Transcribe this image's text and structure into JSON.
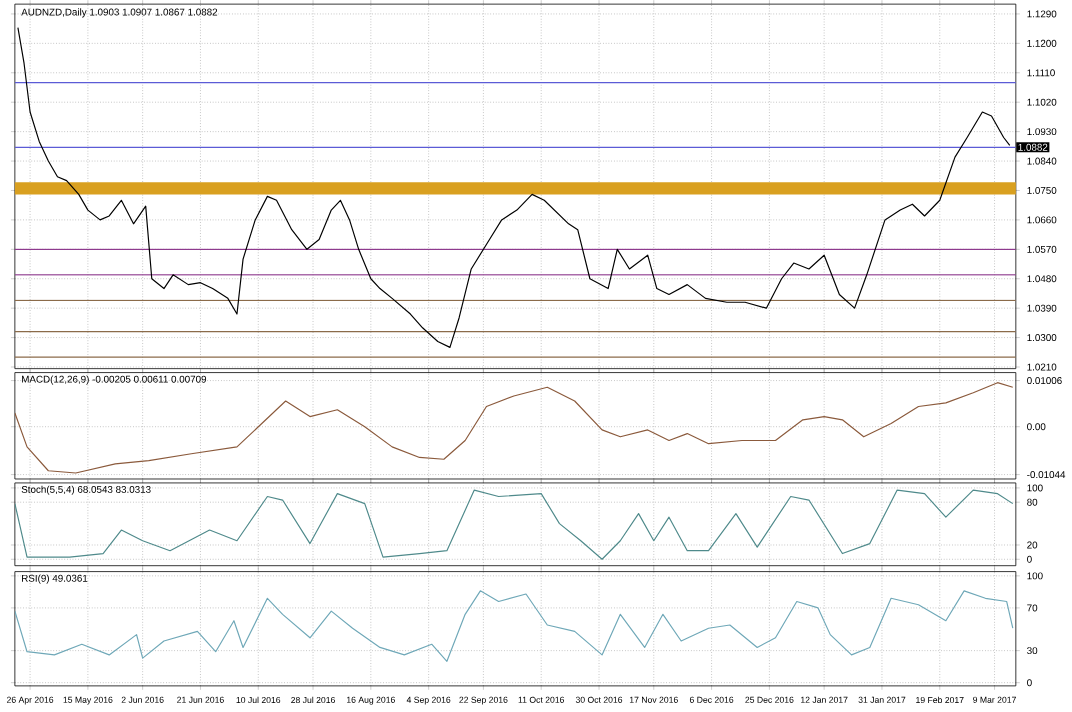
{
  "chart_data": [
    {
      "type": "line",
      "title": "AUDNZD,Daily 1.0903 1.0907 1.0867 1.0882",
      "xlim": [
        "2016-04-21",
        "2017-03-16"
      ],
      "xticks": [
        {
          "value": "2016-04-26",
          "label": null
        },
        {
          "value": "2016-05-15",
          "label": null
        },
        {
          "value": "2016-06-02",
          "label": null
        },
        {
          "value": "2016-06-21",
          "label": null
        },
        {
          "value": "2016-07-10",
          "label": null
        },
        {
          "value": "2016-07-28",
          "label": null
        },
        {
          "value": "2016-08-16",
          "label": null
        },
        {
          "value": "2016-09-04",
          "label": null
        },
        {
          "value": "2016-09-22",
          "label": null
        },
        {
          "value": "2016-10-11",
          "label": null
        },
        {
          "value": "2016-10-30",
          "label": null
        },
        {
          "value": "2016-11-17",
          "label": null
        },
        {
          "value": "2016-12-06",
          "label": null
        },
        {
          "value": "2016-12-25",
          "label": null
        },
        {
          "value": "2017-01-12",
          "label": null
        },
        {
          "value": "2017-01-31",
          "label": null
        },
        {
          "value": "2017-02-19",
          "label": null
        },
        {
          "value": "2017-03-09",
          "label": null
        }
      ],
      "ylim": [
        1.0205,
        1.132
      ],
      "yticks": [
        {
          "value": 1.129,
          "label": "1.1290"
        },
        {
          "value": 1.12,
          "label": "1.1200"
        },
        {
          "value": 1.111,
          "label": "1.1110"
        },
        {
          "value": 1.102,
          "label": "1.1020"
        },
        {
          "value": 1.093,
          "label": "1.0930"
        },
        {
          "value": 1.084,
          "label": "1.0840"
        },
        {
          "value": 1.075,
          "label": "1.0750"
        },
        {
          "value": 1.066,
          "label": "1.0660"
        },
        {
          "value": 1.057,
          "label": "1.0570"
        },
        {
          "value": 1.048,
          "label": "1.0480"
        },
        {
          "value": 1.039,
          "label": "1.0390"
        },
        {
          "value": 1.03,
          "label": "1.0300"
        },
        {
          "value": 1.021,
          "label": "1.0210"
        }
      ],
      "grid": true,
      "tick_labels": "y",
      "marker": "none",
      "line_style": "solid",
      "bands": [
        {
          "axis": "y",
          "from": 1.0738,
          "to": 1.0775,
          "color": "#d9a020"
        }
      ],
      "ref_lines": [
        {
          "axis": "y",
          "value": 1.108,
          "color": "#5b5bd6"
        },
        {
          "axis": "y",
          "value": 1.0882,
          "label": "1.0882",
          "color": "#5b5bd6"
        },
        {
          "axis": "y",
          "value": 1.057,
          "color": "#8e3a8e"
        },
        {
          "axis": "y",
          "value": 1.0492,
          "color": "#8e3a8e"
        },
        {
          "axis": "y",
          "value": 1.0414,
          "color": "#8b6b4a"
        },
        {
          "axis": "y",
          "value": 1.0318,
          "color": "#8b6b4a"
        },
        {
          "axis": "y",
          "value": 1.024,
          "color": "#8b6b4a"
        }
      ],
      "series": [
        {
          "color": "#000000",
          "x": [
            "2016-04-22",
            "2016-04-24",
            "2016-04-26",
            "2016-04-29",
            "2016-05-02",
            "2016-05-05",
            "2016-05-08",
            "2016-05-12",
            "2016-05-15",
            "2016-05-19",
            "2016-05-22",
            "2016-05-26",
            "2016-05-30",
            "2016-06-03",
            "2016-06-05",
            "2016-06-09",
            "2016-06-12",
            "2016-06-17",
            "2016-06-21",
            "2016-06-25",
            "2016-06-30",
            "2016-07-03",
            "2016-07-05",
            "2016-07-09",
            "2016-07-13",
            "2016-07-16",
            "2016-07-21",
            "2016-07-26",
            "2016-07-30",
            "2016-08-03",
            "2016-08-06",
            "2016-08-09",
            "2016-08-12",
            "2016-08-16",
            "2016-08-19",
            "2016-08-23",
            "2016-08-29",
            "2016-09-02",
            "2016-09-07",
            "2016-09-11",
            "2016-09-14",
            "2016-09-18",
            "2016-09-24",
            "2016-09-28",
            "2016-10-03",
            "2016-10-08",
            "2016-10-12",
            "2016-10-20",
            "2016-10-23",
            "2016-10-27",
            "2016-11-02",
            "2016-11-05",
            "2016-11-09",
            "2016-11-15",
            "2016-11-18",
            "2016-11-22",
            "2016-11-28",
            "2016-12-04",
            "2016-12-11",
            "2016-12-17",
            "2016-12-24",
            "2016-12-29",
            "2017-01-02",
            "2017-01-07",
            "2017-01-12",
            "2017-01-17",
            "2017-01-22",
            "2017-01-26",
            "2017-02-01",
            "2017-02-06",
            "2017-02-10",
            "2017-02-14",
            "2017-02-19",
            "2017-02-24",
            "2017-02-28",
            "2017-03-05",
            "2017-03-08",
            "2017-03-12",
            "2017-03-14"
          ],
          "values": [
            1.1248,
            1.114,
            1.099,
            1.09,
            1.084,
            1.0792,
            1.078,
            1.0738,
            1.069,
            1.066,
            1.0672,
            1.072,
            1.0648,
            1.0702,
            1.048,
            1.045,
            1.0492,
            1.0462,
            1.0468,
            1.045,
            1.042,
            1.0372,
            1.054,
            1.066,
            1.0732,
            1.072,
            1.063,
            1.057,
            1.06,
            1.069,
            1.072,
            1.066,
            1.057,
            1.048,
            1.045,
            1.042,
            1.0372,
            1.033,
            1.0288,
            1.027,
            1.036,
            1.051,
            1.06,
            1.066,
            1.069,
            1.0738,
            1.072,
            1.0648,
            1.063,
            1.048,
            1.045,
            1.057,
            1.051,
            1.0552,
            1.045,
            1.0432,
            1.0462,
            1.042,
            1.0408,
            1.0408,
            1.039,
            1.048,
            1.0528,
            1.051,
            1.0552,
            1.0432,
            1.039,
            1.0492,
            1.066,
            1.069,
            1.0708,
            1.0672,
            1.072,
            1.0852,
            1.0912,
            1.099,
            1.0978,
            1.0912,
            1.0888
          ]
        }
      ]
    },
    {
      "type": "line",
      "title": "MACD(12,26,9) -0.00205 0.00611 0.00709",
      "xlim": [
        "2016-04-21",
        "2017-03-16"
      ],
      "xticks": [
        {
          "value": "2016-04-26",
          "label": null
        },
        {
          "value": "2016-05-15",
          "label": null
        },
        {
          "value": "2016-06-02",
          "label": null
        },
        {
          "value": "2016-06-21",
          "label": null
        },
        {
          "value": "2016-07-10",
          "label": null
        },
        {
          "value": "2016-07-28",
          "label": null
        },
        {
          "value": "2016-08-16",
          "label": null
        },
        {
          "value": "2016-09-04",
          "label": null
        },
        {
          "value": "2016-09-22",
          "label": null
        },
        {
          "value": "2016-10-11",
          "label": null
        },
        {
          "value": "2016-10-30",
          "label": null
        },
        {
          "value": "2016-11-17",
          "label": null
        },
        {
          "value": "2016-12-06",
          "label": null
        },
        {
          "value": "2016-12-25",
          "label": null
        },
        {
          "value": "2017-01-12",
          "label": null
        },
        {
          "value": "2017-01-31",
          "label": null
        },
        {
          "value": "2017-02-19",
          "label": null
        },
        {
          "value": "2017-03-09",
          "label": null
        }
      ],
      "ylim": [
        -0.0114,
        0.0118
      ],
      "yticks": [
        0.01006,
        {
          "value": 0,
          "label": "0.00"
        },
        -0.01044
      ],
      "grid": true,
      "tick_labels": "y",
      "marker": "none",
      "line_style": "solid",
      "series": [
        {
          "color": "#8b5a3c",
          "x": [
            "2016-04-21",
            "2016-04-25",
            "2016-05-02",
            "2016-05-11",
            "2016-05-24",
            "2016-06-04",
            "2016-06-18",
            "2016-07-03",
            "2016-07-19",
            "2016-07-27",
            "2016-08-05",
            "2016-08-14",
            "2016-08-23",
            "2016-09-01",
            "2016-09-09",
            "2016-09-16",
            "2016-09-23",
            "2016-10-02",
            "2016-10-13",
            "2016-10-22",
            "2016-10-31",
            "2016-11-06",
            "2016-11-15",
            "2016-11-22",
            "2016-11-28",
            "2016-12-05",
            "2016-12-16",
            "2016-12-27",
            "2017-01-05",
            "2017-01-12",
            "2017-01-18",
            "2017-01-25",
            "2017-02-03",
            "2017-02-12",
            "2017-02-21",
            "2017-03-02",
            "2017-03-10",
            "2017-03-15"
          ],
          "values": [
            0.003,
            -0.0044,
            -0.0096,
            -0.0101,
            -0.0081,
            -0.0074,
            -0.0059,
            -0.0044,
            0.0056,
            0.0022,
            0.0037,
            0,
            -0.0044,
            -0.0067,
            -0.0071,
            -0.003,
            0.0044,
            0.0067,
            0.0086,
            0.0056,
            -0.0007,
            -0.0022,
            -0.0007,
            -0.003,
            -0.0015,
            -0.0037,
            -0.003,
            -0.003,
            0.0015,
            0.0022,
            0.0015,
            -0.0022,
            0.0007,
            0.0044,
            0.0052,
            0.0074,
            0.0096,
            0.0086
          ]
        }
      ]
    },
    {
      "type": "line",
      "title": "Stoch(5,5,4) 68.0543 83.0313",
      "xlim": [
        "2016-04-21",
        "2017-03-16"
      ],
      "xticks": [
        {
          "value": "2016-04-26",
          "label": null
        },
        {
          "value": "2016-05-15",
          "label": null
        },
        {
          "value": "2016-06-02",
          "label": null
        },
        {
          "value": "2016-06-21",
          "label": null
        },
        {
          "value": "2016-07-10",
          "label": null
        },
        {
          "value": "2016-07-28",
          "label": null
        },
        {
          "value": "2016-08-16",
          "label": null
        },
        {
          "value": "2016-09-04",
          "label": null
        },
        {
          "value": "2016-09-22",
          "label": null
        },
        {
          "value": "2016-10-11",
          "label": null
        },
        {
          "value": "2016-10-30",
          "label": null
        },
        {
          "value": "2016-11-17",
          "label": null
        },
        {
          "value": "2016-12-06",
          "label": null
        },
        {
          "value": "2016-12-25",
          "label": null
        },
        {
          "value": "2017-01-12",
          "label": null
        },
        {
          "value": "2017-01-31",
          "label": null
        },
        {
          "value": "2017-02-19",
          "label": null
        },
        {
          "value": "2017-03-09",
          "label": null
        }
      ],
      "ylim": [
        -9,
        107
      ],
      "yticks": [
        100,
        80,
        20,
        0
      ],
      "grid": true,
      "tick_labels": "y",
      "marker": "none",
      "line_style": "solid",
      "series": [
        {
          "color": "#4f8a8b",
          "x": [
            "2016-04-21",
            "2016-04-25",
            "2016-05-09",
            "2016-05-20",
            "2016-05-26",
            "2016-06-02",
            "2016-06-11",
            "2016-06-24",
            "2016-07-03",
            "2016-07-13",
            "2016-07-18",
            "2016-07-27",
            "2016-08-05",
            "2016-08-14",
            "2016-08-20",
            "2016-09-01",
            "2016-09-10",
            "2016-09-19",
            "2016-09-27",
            "2016-10-11",
            "2016-10-17",
            "2016-10-24",
            "2016-10-31",
            "2016-11-06",
            "2016-11-12",
            "2016-11-17",
            "2016-11-22",
            "2016-11-28",
            "2016-12-05",
            "2016-12-14",
            "2016-12-21",
            "2017-01-01",
            "2017-01-07",
            "2017-01-18",
            "2017-01-27",
            "2017-02-05",
            "2017-02-14",
            "2017-02-21",
            "2017-03-02",
            "2017-03-10",
            "2017-03-15"
          ],
          "values": [
            78,
            3,
            3,
            8,
            41,
            26,
            12,
            41,
            26,
            88,
            83,
            22,
            92,
            78,
            3,
            8,
            12,
            97,
            88,
            92,
            50,
            26,
            0,
            26,
            64,
            26,
            59,
            12,
            12,
            64,
            17,
            88,
            83,
            8,
            22,
            97,
            92,
            59,
            97,
            92,
            78
          ]
        }
      ]
    },
    {
      "type": "line",
      "title": "RSI(9) 49.0361",
      "xlim": [
        "2016-04-21",
        "2017-03-16"
      ],
      "xticks": [
        {
          "value": "2016-04-26",
          "label": "26 Apr 2016"
        },
        {
          "value": "2016-05-15",
          "label": "15 May 2016"
        },
        {
          "value": "2016-06-02",
          "label": "2 Jun 2016"
        },
        {
          "value": "2016-06-21",
          "label": "21 Jun 2016"
        },
        {
          "value": "2016-07-10",
          "label": "10 Jul 2016"
        },
        {
          "value": "2016-07-28",
          "label": "28 Jul 2016"
        },
        {
          "value": "2016-08-16",
          "label": "16 Aug 2016"
        },
        {
          "value": "2016-09-04",
          "label": "4 Sep 2016"
        },
        {
          "value": "2016-09-22",
          "label": "22 Sep 2016"
        },
        {
          "value": "2016-10-11",
          "label": "11 Oct 2016"
        },
        {
          "value": "2016-10-30",
          "label": "30 Oct 2016"
        },
        {
          "value": "2016-11-17",
          "label": "17 Nov 2016"
        },
        {
          "value": "2016-12-06",
          "label": "6 Dec 2016"
        },
        {
          "value": "2016-12-25",
          "label": "25 Dec 2016"
        },
        {
          "value": "2017-01-12",
          "label": "12 Jan 2017"
        },
        {
          "value": "2017-01-31",
          "label": "31 Jan 2017"
        },
        {
          "value": "2017-02-19",
          "label": "19 Feb 2017"
        },
        {
          "value": "2017-03-09",
          "label": "9 Mar 2017"
        }
      ],
      "ylim": [
        -3,
        104
      ],
      "yticks": [
        100,
        70,
        30,
        0
      ],
      "grid": true,
      "marker": "none",
      "line_style": "solid",
      "series": [
        {
          "color": "#6fa8b8",
          "x": [
            "2016-04-21",
            "2016-04-25",
            "2016-05-04",
            "2016-05-13",
            "2016-05-22",
            "2016-05-31",
            "2016-06-02",
            "2016-06-09",
            "2016-06-20",
            "2016-06-26",
            "2016-07-02",
            "2016-07-05",
            "2016-07-13",
            "2016-07-18",
            "2016-07-27",
            "2016-08-03",
            "2016-08-10",
            "2016-08-19",
            "2016-08-27",
            "2016-09-05",
            "2016-09-10",
            "2016-09-16",
            "2016-09-21",
            "2016-09-27",
            "2016-10-06",
            "2016-10-13",
            "2016-10-22",
            "2016-10-31",
            "2016-11-06",
            "2016-11-14",
            "2016-11-20",
            "2016-11-26",
            "2016-12-05",
            "2016-12-12",
            "2016-12-21",
            "2016-12-27",
            "2017-01-03",
            "2017-01-10",
            "2017-01-14",
            "2017-01-21",
            "2017-01-27",
            "2017-02-03",
            "2017-02-12",
            "2017-02-21",
            "2017-02-27",
            "2017-03-06",
            "2017-03-13",
            "2017-03-15"
          ],
          "values": [
            67,
            29,
            26,
            36,
            26,
            45,
            23,
            39,
            48,
            29,
            58,
            33,
            79,
            64,
            42,
            67,
            51,
            33,
            26,
            36,
            20,
            64,
            86,
            76,
            83,
            54,
            48,
            26,
            64,
            33,
            64,
            39,
            51,
            54,
            33,
            42,
            76,
            70,
            45,
            26,
            33,
            79,
            73,
            58,
            86,
            79,
            76,
            51
          ]
        }
      ]
    }
  ]
}
